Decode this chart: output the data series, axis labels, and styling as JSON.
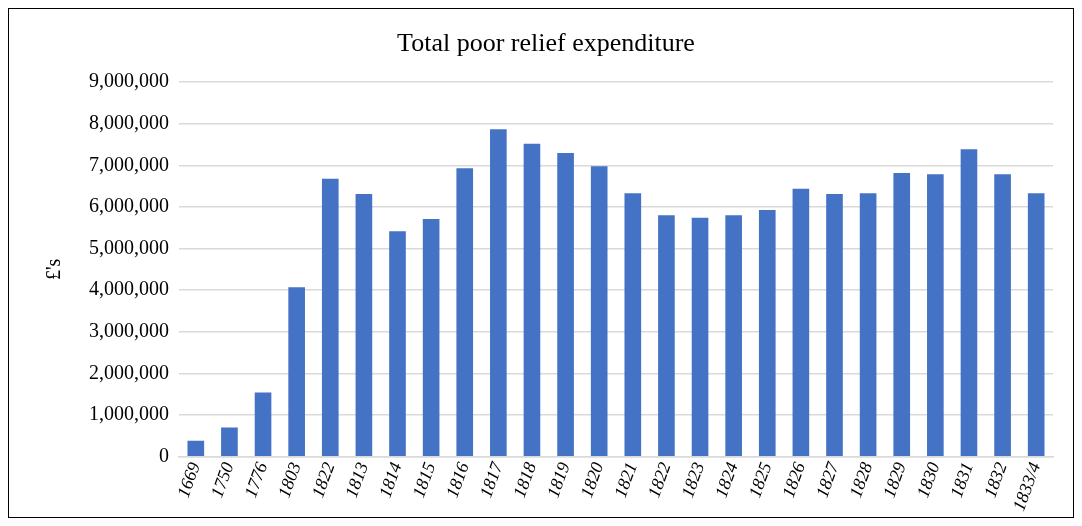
{
  "chart_data": {
    "type": "bar",
    "title": "Total poor relief expenditure",
    "ylabel": "£'s",
    "categories": [
      "1669",
      "1750",
      "1776",
      "1803",
      "1822",
      "1813",
      "1814",
      "1815",
      "1816",
      "1817",
      "1818",
      "1819",
      "1820",
      "1821",
      "1822",
      "1823",
      "1824",
      "1825",
      "1826",
      "1827",
      "1828",
      "1829",
      "1830",
      "1831",
      "1832",
      "1833/4"
    ],
    "values": [
      380000,
      700000,
      1540000,
      4070000,
      6680000,
      6310000,
      5420000,
      5710000,
      6930000,
      7870000,
      7520000,
      7300000,
      6980000,
      6330000,
      5800000,
      5740000,
      5800000,
      5930000,
      6440000,
      6310000,
      6330000,
      6820000,
      6790000,
      7390000,
      6790000,
      6330000
    ],
    "color": "#4472c4",
    "ylim": [
      0,
      9000000
    ],
    "yticks": [
      0,
      {
        "value": 1000000,
        "label": "1,000,000"
      },
      {
        "value": 2000000,
        "label": "2,000,000"
      },
      {
        "value": 3000000,
        "label": "3,000,000"
      },
      {
        "value": 4000000,
        "label": "4,000,000"
      },
      {
        "value": 5000000,
        "label": "5,000,000"
      },
      {
        "value": 6000000,
        "label": "6,000,000"
      },
      {
        "value": 7000000,
        "label": "7,000,000"
      },
      {
        "value": 8000000,
        "label": "8,000,000"
      },
      {
        "value": 9000000,
        "label": "9,000,000"
      }
    ],
    "grid": "y",
    "legend": false
  }
}
